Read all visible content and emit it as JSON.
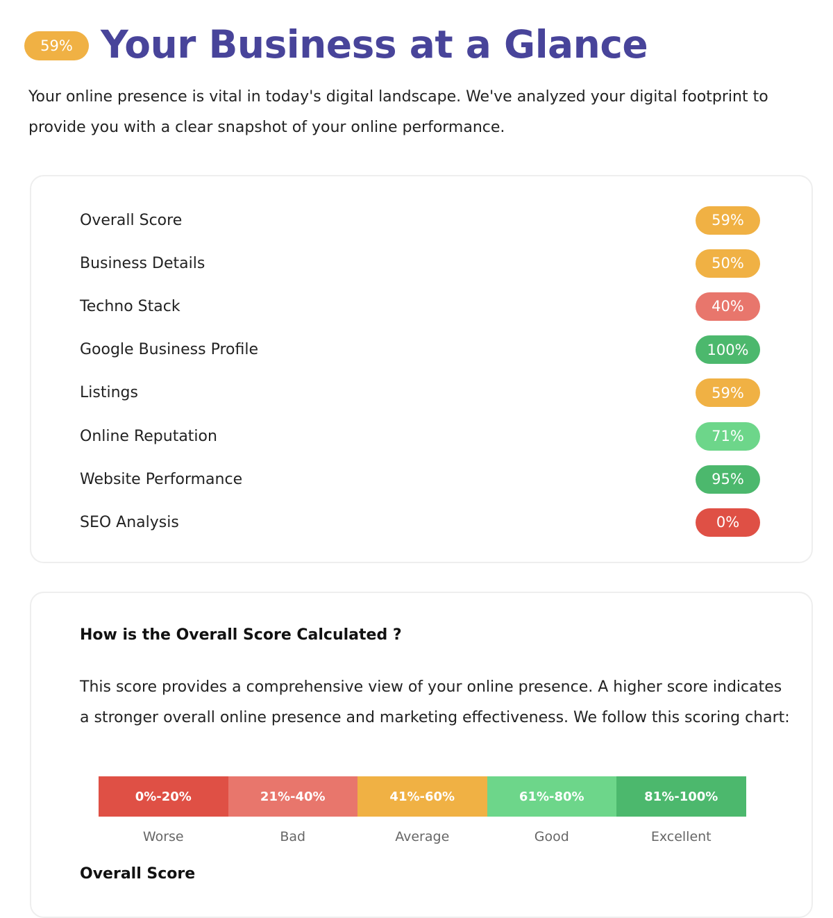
{
  "header": {
    "badge": "59%",
    "title": "Your Business at a Glance",
    "intro": "Your online presence is vital in today's digital landscape. We've analyzed your digital footprint to provide you with a clear snapshot of your online performance."
  },
  "scores": [
    {
      "label": "Overall Score",
      "value": "59%",
      "color": "#F0B144"
    },
    {
      "label": "Business Details",
      "value": "50%",
      "color": "#F0B144"
    },
    {
      "label": "Techno Stack",
      "value": "40%",
      "color": "#E8766C"
    },
    {
      "label": "Google Business Profile",
      "value": "100%",
      "color": "#4CB86D"
    },
    {
      "label": "Listings",
      "value": "59%",
      "color": "#F0B144"
    },
    {
      "label": "Online Reputation",
      "value": "71%",
      "color": "#6DD68A"
    },
    {
      "label": "Website Performance",
      "value": "95%",
      "color": "#4CB86D"
    },
    {
      "label": "SEO Analysis",
      "value": "0%",
      "color": "#DF5045"
    }
  ],
  "calc": {
    "question": "How is the Overall Score Calculated ?",
    "description": "This score provides a comprehensive view of your online presence. A higher score indicates a stronger overall online presence and marketing effectiveness. We follow this scoring chart:",
    "scale": [
      {
        "range": "0%-20%",
        "label": "Worse",
        "color": "#DF5045"
      },
      {
        "range": "21%-40%",
        "label": "Bad",
        "color": "#E8766C"
      },
      {
        "range": "41%-60%",
        "label": "Average",
        "color": "#F0B144"
      },
      {
        "range": "61%-80%",
        "label": "Good",
        "color": "#6DD68A"
      },
      {
        "range": "81%-100%",
        "label": "Excellent",
        "color": "#4CB86D"
      }
    ],
    "overall_heading": "Overall Score"
  }
}
